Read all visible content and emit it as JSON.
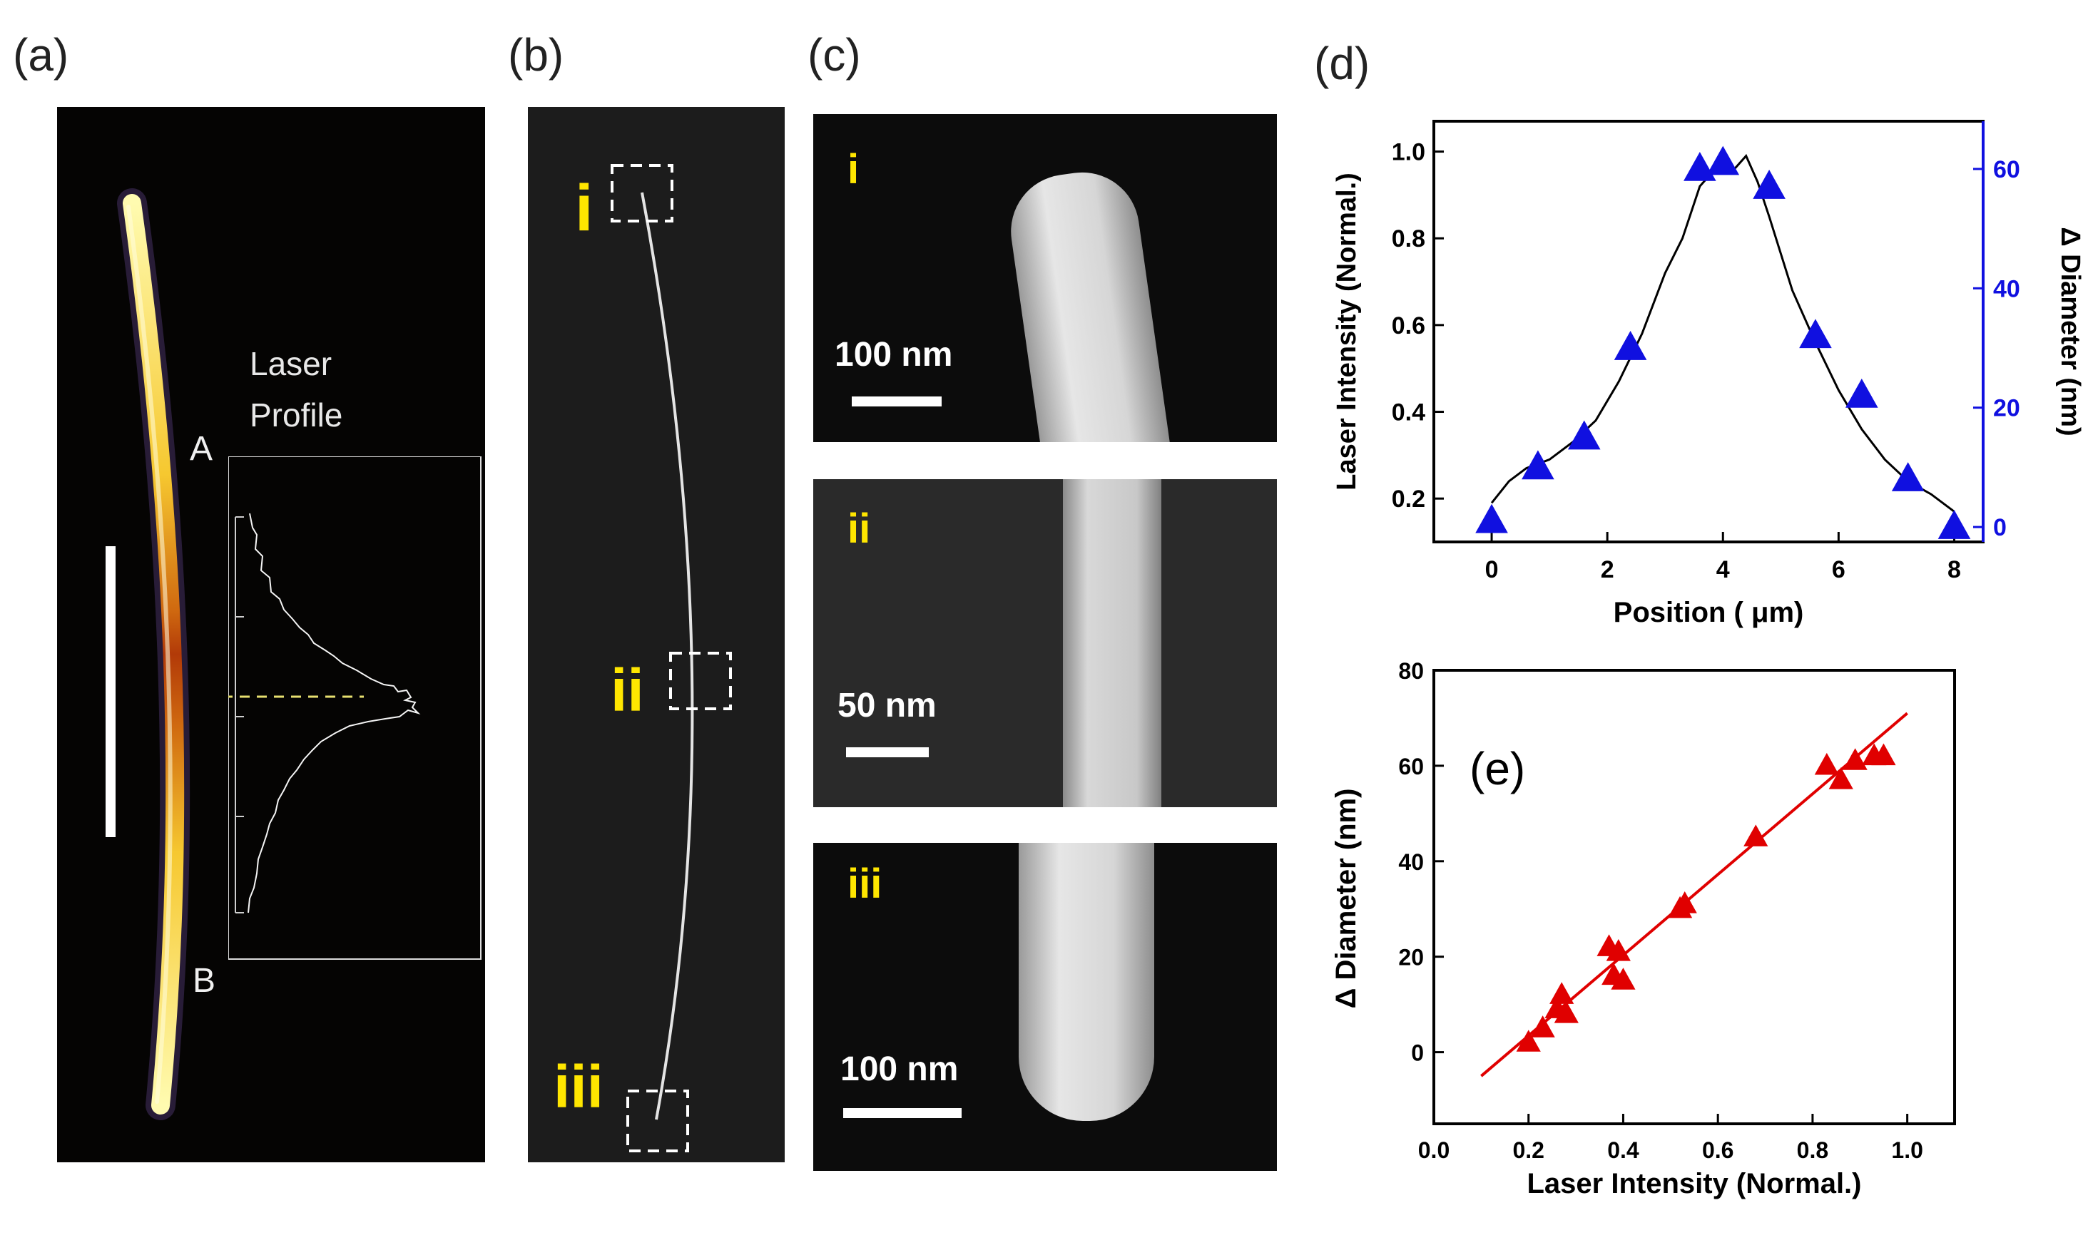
{
  "figure": {
    "panel_labels": [
      "(a)",
      "(b)",
      "(c)",
      "(d)",
      "(e)"
    ],
    "panel_a": {
      "laser_profile_label_line1": "Laser",
      "laser_profile_label_line2": "Profile",
      "point_a": "A",
      "point_b": "B"
    },
    "panel_b": {
      "region_labels": [
        "i",
        "ii",
        "iii"
      ]
    },
    "panel_c": {
      "insets": [
        {
          "roman": "i",
          "scale_bar": "100 nm"
        },
        {
          "roman": "ii",
          "scale_bar": "50 nm"
        },
        {
          "roman": "iii",
          "scale_bar": "100 nm"
        }
      ]
    }
  },
  "chart_data": [
    {
      "id": "d",
      "type": "line",
      "xlabel": "Position ( μm)",
      "ylabel_left": "Laser Intensity (Normal.)",
      "ylabel_right": "Δ Diameter (nm)",
      "xlim": [
        -1,
        8.5
      ],
      "ylim_left": [
        0.1,
        1.07
      ],
      "ylim_right": [
        -2.5,
        68
      ],
      "xticks": [
        "0",
        "2",
        "4",
        "6",
        "8"
      ],
      "yticks_left": [
        "0.2",
        "0.4",
        "0.6",
        "0.8",
        "1.0"
      ],
      "yticks_right": [
        "0",
        "20",
        "40",
        "60"
      ],
      "colors": {
        "line": "#000000",
        "markers": "#1010e0",
        "right_axis": "#1010e0"
      },
      "series": [
        {
          "name": "Laser Intensity",
          "axis": "left",
          "x": [
            0.0,
            0.3,
            0.6,
            1.0,
            1.4,
            1.8,
            2.2,
            2.6,
            3.0,
            3.3,
            3.6,
            3.8,
            4.0,
            4.2,
            4.4,
            4.6,
            4.8,
            5.2,
            5.6,
            6.0,
            6.4,
            6.8,
            7.2,
            7.6,
            8.0
          ],
          "values": [
            0.19,
            0.24,
            0.27,
            0.29,
            0.33,
            0.38,
            0.47,
            0.58,
            0.72,
            0.8,
            0.92,
            0.95,
            0.97,
            0.96,
            0.99,
            0.93,
            0.85,
            0.68,
            0.56,
            0.45,
            0.36,
            0.29,
            0.24,
            0.21,
            0.17
          ]
        },
        {
          "name": "Δ Diameter",
          "axis": "right",
          "x": [
            0.0,
            0.8,
            1.6,
            2.4,
            3.6,
            4.0,
            4.8,
            5.6,
            6.4,
            7.2,
            8.0
          ],
          "values": [
            1,
            10,
            15,
            30,
            60,
            61,
            57,
            32,
            22,
            8,
            0
          ]
        }
      ]
    },
    {
      "id": "e",
      "type": "scatter",
      "annotation": "(e)",
      "xlabel": "Laser Intensity (Normal.)",
      "ylabel": "Δ Diameter (nm)",
      "xlim": [
        0.0,
        1.1
      ],
      "ylim": [
        -15,
        80
      ],
      "xticks": [
        "0.0",
        "0.2",
        "0.4",
        "0.6",
        "0.8",
        "1.0"
      ],
      "yticks": [
        "0",
        "20",
        "40",
        "60",
        "80"
      ],
      "colors": {
        "points": "#e00000",
        "fit": "#e00000"
      },
      "x": [
        0.2,
        0.23,
        0.26,
        0.27,
        0.28,
        0.37,
        0.39,
        0.38,
        0.4,
        0.52,
        0.53,
        0.68,
        0.83,
        0.86,
        0.89,
        0.93,
        0.95
      ],
      "values": [
        2,
        5,
        9,
        12,
        8,
        22,
        21,
        16,
        15,
        30,
        31,
        45,
        60,
        57,
        61,
        62,
        62
      ],
      "fit_line": {
        "x": [
          0.1,
          1.0
        ],
        "values": [
          -5,
          71
        ]
      }
    }
  ]
}
